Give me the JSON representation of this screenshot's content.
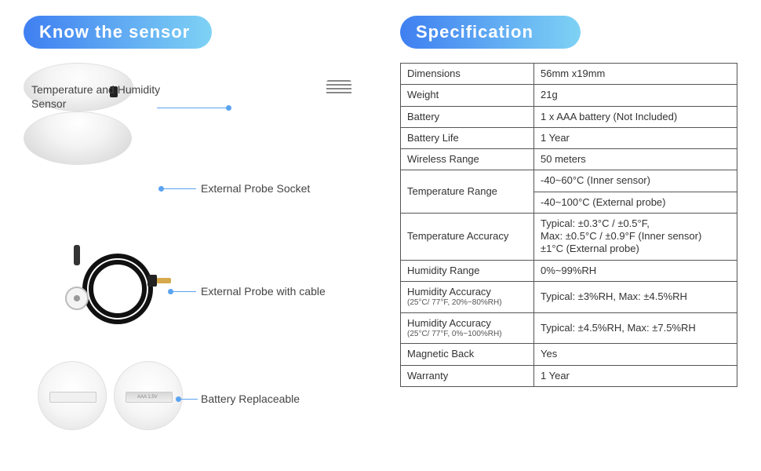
{
  "colors": {
    "pill_gradient_start": "#3f7ff1",
    "pill_gradient_end": "#7ed2f4",
    "callout_line": "#5aa3f0",
    "table_border": "#555555",
    "text": "#333333",
    "background": "#ffffff"
  },
  "left": {
    "heading": "Know the sensor",
    "callouts": {
      "temp_humidity": "Temperature and Humidity Sensor",
      "probe_socket": "External  Probe Socket",
      "probe_cable": "External Probe with cable",
      "battery": "Battery Replaceable"
    },
    "icons": {
      "sensor_top": "sensor-top-view",
      "sensor_side": "sensor-side-view",
      "probe_cable": "probe-cable-coil",
      "sensor_back_closed": "sensor-back-closed",
      "sensor_back_open": "sensor-back-battery"
    }
  },
  "right": {
    "heading": "Specification",
    "rows": [
      {
        "label": "Dimensions",
        "value": "56mm x19mm"
      },
      {
        "label": "Weight",
        "value": "21g"
      },
      {
        "label": "Battery",
        "value": "1 x AAA battery (Not Included)"
      },
      {
        "label": "Battery Life",
        "value": "1 Year"
      },
      {
        "label": "Wireless Range",
        "value": "50 meters"
      },
      {
        "label": "Temperature Range",
        "rowspan": 2,
        "value": "-40~60°C (Inner sensor)"
      },
      {
        "value": "-40~100°C (External probe)"
      },
      {
        "label": "Temperature  Accuracy",
        "value": "Typical: ±0.3°C / ±0.5°F,\nMax: ±0.5°C / ±0.9°F (Inner sensor)\n±1°C (External probe)"
      },
      {
        "label": "Humidity Range",
        "value": "0%~99%RH"
      },
      {
        "label": "Humidity Accuracy",
        "sublabel": "(25°C/ 77°F, 20%~80%RH)",
        "value": "Typical: ±3%RH, Max: ±4.5%RH"
      },
      {
        "label": "Humidity Accuracy",
        "sublabel": "(25°C/ 77°F, 0%~100%RH)",
        "value": "Typical: ±4.5%RH, Max: ±7.5%RH"
      },
      {
        "label": "Magnetic Back",
        "value": "Yes"
      },
      {
        "label": "Warranty",
        "value": "1 Year"
      }
    ]
  }
}
